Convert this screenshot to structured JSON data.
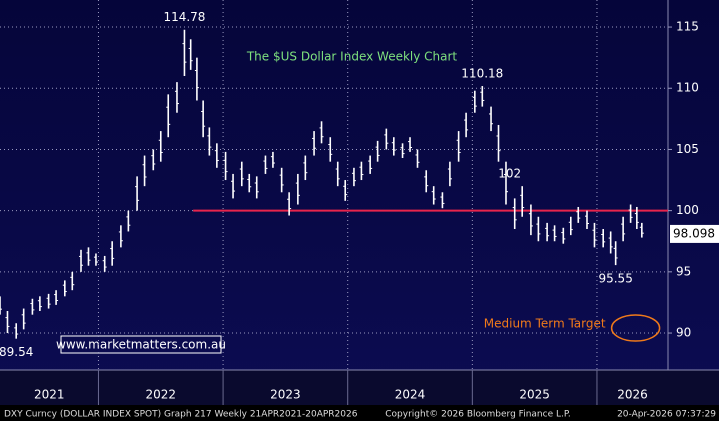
{
  "chart_data": {
    "type": "hilo",
    "title": "The $US Dollar Index Weekly Chart",
    "x": [
      2021.21,
      2021.27,
      2021.34,
      2021.4,
      2021.47,
      2021.53,
      2021.6,
      2021.66,
      2021.73,
      2021.79,
      2021.86,
      2021.92,
      2021.98,
      2022.05,
      2022.11,
      2022.18,
      2022.24,
      2022.31,
      2022.37,
      2022.44,
      2022.5,
      2022.56,
      2022.63,
      2022.69,
      2022.74,
      2022.79,
      2022.84,
      2022.89,
      2022.95,
      2023.02,
      2023.08,
      2023.15,
      2023.21,
      2023.27,
      2023.34,
      2023.4,
      2023.47,
      2023.53,
      2023.6,
      2023.66,
      2023.73,
      2023.79,
      2023.86,
      2023.92,
      2023.98,
      2024.05,
      2024.11,
      2024.18,
      2024.24,
      2024.31,
      2024.37,
      2024.44,
      2024.5,
      2024.56,
      2024.63,
      2024.69,
      2024.76,
      2024.82,
      2024.89,
      2024.95,
      2025.02,
      2025.08,
      2025.15,
      2025.21,
      2025.27,
      2025.34,
      2025.4,
      2025.47,
      2025.53,
      2025.6,
      2025.66,
      2025.73,
      2025.79,
      2025.85,
      2025.92,
      2025.98,
      2026.05,
      2026.11,
      2026.15,
      2026.21,
      2026.27,
      2026.32,
      2026.36
    ],
    "high": [
      93,
      91.8,
      90.8,
      92,
      92.8,
      93,
      93.2,
      93.5,
      94.3,
      95,
      96.8,
      97,
      96.5,
      96.3,
      97.5,
      98.8,
      100,
      102.8,
      104.5,
      105,
      106.5,
      109.5,
      110.5,
      114.78,
      114,
      112.5,
      109,
      106.8,
      105.5,
      104.8,
      103,
      104,
      103,
      102.8,
      104.5,
      104.8,
      103.5,
      101.5,
      103,
      104.5,
      106.5,
      107.3,
      106,
      104,
      102.5,
      103.5,
      104,
      104.5,
      105.7,
      106.7,
      106,
      105.5,
      106,
      105,
      103.3,
      102,
      101.5,
      104,
      106.5,
      108,
      109.8,
      110.18,
      108.5,
      107,
      104,
      101,
      102,
      100.5,
      99.5,
      99,
      98.8,
      98.6,
      99.5,
      100.3,
      100,
      99,
      98.5,
      98.3,
      97.5,
      99.5,
      100.5,
      100.3,
      99
    ],
    "low": [
      91.5,
      90,
      89.54,
      90.3,
      91.5,
      91.8,
      92,
      92.3,
      93,
      93.5,
      95,
      95.5,
      95.5,
      95,
      95.5,
      97,
      98.3,
      100,
      102,
      103.3,
      104,
      106,
      108,
      111,
      111.5,
      109,
      106,
      104.5,
      103.5,
      102.5,
      101,
      102,
      101.5,
      101,
      103,
      103.5,
      101.5,
      99.6,
      100.5,
      102.5,
      104.5,
      105.5,
      104,
      102,
      100.8,
      102,
      102.5,
      103,
      104,
      105,
      104.5,
      104.3,
      104.8,
      103.5,
      101.5,
      100.5,
      100.2,
      102,
      104,
      106,
      108,
      108.5,
      106.5,
      104,
      100.5,
      98.5,
      99.5,
      98,
      97.5,
      97.5,
      97.5,
      97.3,
      98,
      99,
      98.5,
      97,
      97,
      96.5,
      95.55,
      97.5,
      99,
      98.5,
      97.8
    ],
    "color": "#ffffff",
    "xlim": [
      2021.21,
      2026.57
    ],
    "xticks": [
      2022,
      2023,
      2024,
      2025,
      2026
    ],
    "year_labels": [
      "2021",
      "2022",
      "2023",
      "2024",
      "2025",
      "2026"
    ],
    "ylim": [
      86.98,
      117.21
    ],
    "yticks": [
      90,
      95,
      100,
      105,
      110,
      115
    ],
    "grid": true,
    "annotations": [
      {
        "text": "114.78",
        "x": 2022.69,
        "y": 114.78
      },
      {
        "text": "110.18",
        "x": 2025.08,
        "y": 110.18
      },
      {
        "text": "102",
        "x": 2025.3,
        "y": 102
      },
      {
        "text": "95.55",
        "x": 2026.15,
        "y": 95.55
      },
      {
        "text": "89.54",
        "x": 2021.34,
        "y": 89.54
      }
    ],
    "hline": {
      "value": 100,
      "from": 2022.76,
      "color": "#e8244c"
    },
    "last_value": 98.098,
    "target": {
      "text": "Medium Term Target",
      "y": 90,
      "x": 2026.31,
      "color": "#f07a1a"
    },
    "watermark": "www.marketmatters.com.au",
    "footer": [
      "DXY Curncy (DOLLAR INDEX SPOT) Graph 217 Weekly 21APR2021-20APR2026",
      "Copyright© 2026 Bloomberg Finance L.P.",
      "20-Apr-2026 07:37:29"
    ]
  }
}
